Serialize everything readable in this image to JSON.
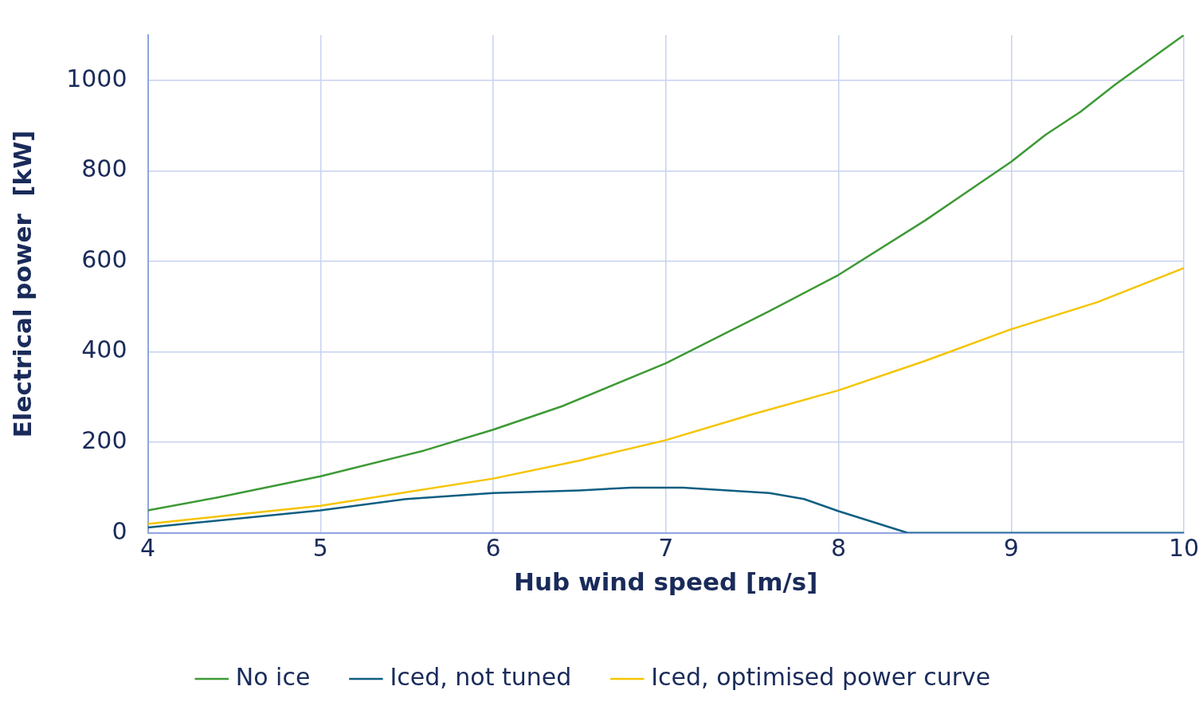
{
  "chart_data": {
    "type": "line",
    "xlabel": "Hub wind speed [m/s]",
    "ylabel": "Electrical power  [kW]",
    "xlim": [
      4,
      10
    ],
    "xticks": [
      4,
      5,
      6,
      7,
      8,
      9,
      10
    ],
    "ylim": [
      0,
      1100
    ],
    "yticks": [
      0,
      200,
      400,
      600,
      800,
      1000
    ],
    "grid": true,
    "legend": "bottom",
    "marker": "none",
    "line_style": "solid",
    "series": [
      {
        "name": "No ice",
        "color": "#3d9a35",
        "x": [
          4,
          4.4,
          5,
          5.6,
          6,
          6.4,
          7,
          7.6,
          8,
          8.5,
          9,
          9.2,
          9.4,
          9.6,
          10
        ],
        "values": [
          50,
          78,
          125,
          182,
          228,
          280,
          375,
          490,
          570,
          690,
          820,
          880,
          930,
          990,
          1100
        ]
      },
      {
        "name": "Iced, not tuned",
        "color": "#0f5e82",
        "x": [
          4,
          5,
          5.5,
          6,
          6.5,
          6.8,
          7.1,
          7.6,
          7.8,
          8,
          8.4,
          9,
          10
        ],
        "values": [
          12,
          50,
          75,
          88,
          94,
          100,
          100,
          88,
          75,
          48,
          0,
          0,
          0
        ]
      },
      {
        "name": "Iced, optimised power curve",
        "color": "#f5c400",
        "x": [
          4,
          5,
          6,
          6.5,
          7,
          7.5,
          8,
          8.5,
          9,
          9.5,
          10
        ],
        "values": [
          20,
          60,
          120,
          160,
          205,
          262,
          315,
          380,
          450,
          510,
          585
        ]
      }
    ]
  }
}
